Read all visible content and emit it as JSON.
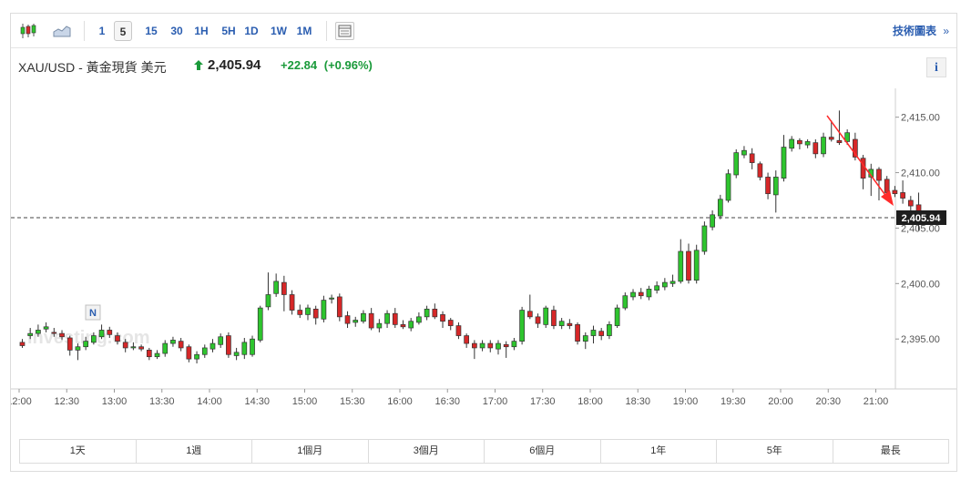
{
  "toolbar": {
    "icons": [
      "candlestick-chart-icon",
      "area-chart-icon",
      "table-view-icon"
    ],
    "intervals": [
      "1",
      "5",
      "15",
      "30",
      "1H",
      "5H",
      "1D",
      "1W",
      "1M"
    ],
    "active_interval": "5",
    "tech_chart_label": "技術圖表",
    "tech_chart_arrow": "»"
  },
  "header": {
    "symbol": "XAU/USD - 黃金現貨 美元",
    "price": "2,405.94",
    "change": "+22.84",
    "change_pct": "(+0.96%)",
    "info_label": "i",
    "trend_icon": "up-arrow-icon",
    "badge_label": "N"
  },
  "colors": {
    "up": "#2ec52e",
    "down": "#d62728",
    "positive_text": "#1a9a3a",
    "link": "#2a5db0",
    "annotation": "#ff2a2a"
  },
  "ranges": [
    "1天",
    "1週",
    "1個月",
    "3個月",
    "6個月",
    "1年",
    "5年",
    "最長"
  ],
  "chart_data": {
    "type": "candlestick",
    "x_tick_labels": [
      "12:00",
      "12:30",
      "13:00",
      "13:30",
      "14:00",
      "14:30",
      "15:00",
      "15:30",
      "16:00",
      "16:30",
      "17:00",
      "17:30",
      "18:00",
      "18:30",
      "19:00",
      "19:30",
      "20:00",
      "20:30",
      "21:00"
    ],
    "y_tick_labels": [
      "2,395.00",
      "2,400.00",
      "2,405.00",
      "2,410.00",
      "2,415.00"
    ],
    "y_ticks": [
      2395,
      2400,
      2405,
      2410,
      2415
    ],
    "ylim": [
      2390.5,
      2417.6
    ],
    "x_start": "12:00",
    "interval_minutes": 5,
    "current_price": 2405.94,
    "current_price_label": "2,405.94",
    "grid": false,
    "candles": [
      [
        2394.7,
        2394.4,
        2395.0,
        2394.2
      ],
      [
        2395.3,
        2395.5,
        2396.0,
        2395.0
      ],
      [
        2395.5,
        2395.8,
        2396.3,
        2395.2
      ],
      [
        2395.9,
        2396.1,
        2396.5,
        2395.6
      ],
      [
        2395.6,
        2395.5,
        2396.0,
        2395.2
      ],
      [
        2395.5,
        2395.2,
        2395.8,
        2394.9
      ],
      [
        2395.1,
        2394.0,
        2395.3,
        2393.5
      ],
      [
        2394.0,
        2394.3,
        2394.6,
        2393.1
      ],
      [
        2394.3,
        2394.8,
        2395.2,
        2394.0
      ],
      [
        2394.7,
        2395.3,
        2395.6,
        2394.5
      ],
      [
        2395.2,
        2395.8,
        2396.3,
        2395.0
      ],
      [
        2395.8,
        2395.4,
        2396.1,
        2395.1
      ],
      [
        2395.3,
        2394.8,
        2395.6,
        2394.5
      ],
      [
        2394.7,
        2394.2,
        2395.0,
        2393.8
      ],
      [
        2394.2,
        2394.3,
        2394.7,
        2394.0
      ],
      [
        2394.3,
        2394.1,
        2394.5,
        2393.9
      ],
      [
        2394.0,
        2393.4,
        2394.2,
        2393.1
      ],
      [
        2393.4,
        2393.7,
        2394.0,
        2393.2
      ],
      [
        2393.7,
        2394.6,
        2394.9,
        2393.4
      ],
      [
        2394.6,
        2394.9,
        2395.2,
        2394.3
      ],
      [
        2394.8,
        2394.2,
        2395.1,
        2393.9
      ],
      [
        2394.3,
        2393.2,
        2394.5,
        2392.9
      ],
      [
        2393.2,
        2393.6,
        2393.9,
        2392.8
      ],
      [
        2393.6,
        2394.2,
        2394.5,
        2393.3
      ],
      [
        2394.1,
        2394.6,
        2395.0,
        2393.8
      ],
      [
        2394.5,
        2395.2,
        2395.5,
        2394.2
      ],
      [
        2395.3,
        2393.6,
        2395.6,
        2393.3
      ],
      [
        2393.5,
        2393.8,
        2394.2,
        2393.1
      ],
      [
        2393.6,
        2394.7,
        2395.1,
        2393.2
      ],
      [
        2393.6,
        2395.0,
        2395.3,
        2393.4
      ],
      [
        2394.9,
        2397.8,
        2398.0,
        2394.7
      ],
      [
        2397.9,
        2399.0,
        2401.0,
        2397.6
      ],
      [
        2399.1,
        2400.2,
        2400.9,
        2398.8
      ],
      [
        2400.1,
        2399.0,
        2400.7,
        2397.5
      ],
      [
        2399.0,
        2397.6,
        2399.4,
        2397.2
      ],
      [
        2397.6,
        2397.2,
        2398.1,
        2396.9
      ],
      [
        2397.2,
        2397.8,
        2398.1,
        2396.7
      ],
      [
        2397.7,
        2396.9,
        2398.0,
        2396.3
      ],
      [
        2396.8,
        2398.5,
        2398.9,
        2396.5
      ],
      [
        2398.6,
        2398.7,
        2399.0,
        2398.2
      ],
      [
        2398.8,
        2397.0,
        2399.1,
        2396.6
      ],
      [
        2397.1,
        2396.4,
        2397.5,
        2396.0
      ],
      [
        2396.5,
        2396.7,
        2397.0,
        2396.1
      ],
      [
        2396.6,
        2397.3,
        2397.6,
        2396.4
      ],
      [
        2397.3,
        2396.0,
        2397.8,
        2395.8
      ],
      [
        2396.0,
        2396.4,
        2396.8,
        2395.6
      ],
      [
        2396.4,
        2397.3,
        2397.6,
        2396.0
      ],
      [
        2397.3,
        2396.3,
        2397.8,
        2396.0
      ],
      [
        2396.3,
        2396.1,
        2396.7,
        2395.9
      ],
      [
        2396.0,
        2396.6,
        2396.9,
        2395.7
      ],
      [
        2396.5,
        2397.0,
        2397.4,
        2396.3
      ],
      [
        2397.0,
        2397.7,
        2398.0,
        2396.7
      ],
      [
        2397.7,
        2397.0,
        2398.2,
        2396.8
      ],
      [
        2397.2,
        2396.6,
        2397.5,
        2396.0
      ],
      [
        2396.7,
        2396.2,
        2396.9,
        2395.8
      ],
      [
        2396.2,
        2395.3,
        2396.5,
        2395.0
      ],
      [
        2395.3,
        2394.6,
        2395.5,
        2394.2
      ],
      [
        2394.6,
        2394.2,
        2394.9,
        2393.2
      ],
      [
        2394.2,
        2394.6,
        2394.9,
        2393.9
      ],
      [
        2394.6,
        2394.2,
        2394.9,
        2393.8
      ],
      [
        2394.1,
        2394.6,
        2394.9,
        2393.6
      ],
      [
        2394.5,
        2394.3,
        2394.8,
        2393.3
      ],
      [
        2394.3,
        2394.8,
        2395.1,
        2394.0
      ],
      [
        2394.8,
        2397.6,
        2397.9,
        2394.5
      ],
      [
        2397.5,
        2397.0,
        2399.0,
        2396.8
      ],
      [
        2397.0,
        2396.4,
        2397.3,
        2396.0
      ],
      [
        2396.3,
        2397.8,
        2398.0,
        2396.0
      ],
      [
        2397.6,
        2396.2,
        2398.0,
        2395.9
      ],
      [
        2396.2,
        2396.6,
        2396.9,
        2395.9
      ],
      [
        2396.4,
        2396.2,
        2396.8,
        2395.9
      ],
      [
        2396.3,
        2394.8,
        2396.5,
        2394.5
      ],
      [
        2394.8,
        2395.3,
        2395.6,
        2394.1
      ],
      [
        2395.3,
        2395.8,
        2396.2,
        2394.6
      ],
      [
        2395.7,
        2395.3,
        2396.0,
        2394.9
      ],
      [
        2395.3,
        2396.3,
        2396.6,
        2395.0
      ],
      [
        2396.2,
        2397.8,
        2398.1,
        2396.0
      ],
      [
        2397.8,
        2398.9,
        2399.2,
        2397.6
      ],
      [
        2398.8,
        2399.2,
        2399.5,
        2398.5
      ],
      [
        2399.2,
        2398.9,
        2399.6,
        2398.6
      ],
      [
        2398.8,
        2399.5,
        2399.8,
        2398.5
      ],
      [
        2399.4,
        2399.8,
        2400.2,
        2399.1
      ],
      [
        2399.7,
        2400.1,
        2400.5,
        2399.4
      ],
      [
        2400.0,
        2400.2,
        2400.8,
        2399.7
      ],
      [
        2400.2,
        2402.9,
        2404.0,
        2400.0
      ],
      [
        2402.9,
        2400.3,
        2403.6,
        2400.0
      ],
      [
        2400.3,
        2403.0,
        2403.5,
        2400.0
      ],
      [
        2402.9,
        2405.2,
        2405.6,
        2402.6
      ],
      [
        2405.1,
        2406.2,
        2406.6,
        2404.8
      ],
      [
        2406.1,
        2407.6,
        2408.0,
        2405.8
      ],
      [
        2407.5,
        2409.9,
        2410.3,
        2407.3
      ],
      [
        2409.8,
        2411.8,
        2412.1,
        2409.5
      ],
      [
        2411.6,
        2412.0,
        2412.4,
        2411.3
      ],
      [
        2411.7,
        2410.9,
        2412.2,
        2410.3
      ],
      [
        2410.8,
        2409.6,
        2411.0,
        2409.3
      ],
      [
        2409.6,
        2408.1,
        2410.0,
        2407.6
      ],
      [
        2408.0,
        2409.6,
        2410.2,
        2406.4
      ],
      [
        2409.5,
        2412.3,
        2413.4,
        2409.2
      ],
      [
        2412.2,
        2413.0,
        2413.3,
        2411.9
      ],
      [
        2412.9,
        2412.6,
        2413.1,
        2412.1
      ],
      [
        2412.5,
        2412.8,
        2413.0,
        2412.2
      ],
      [
        2412.7,
        2411.7,
        2413.0,
        2411.3
      ],
      [
        2411.7,
        2413.2,
        2413.6,
        2411.4
      ],
      [
        2413.2,
        2413.0,
        2414.7,
        2412.8
      ],
      [
        2412.9,
        2412.7,
        2415.6,
        2412.5
      ],
      [
        2412.8,
        2413.6,
        2413.9,
        2412.5
      ],
      [
        2413.0,
        2411.4,
        2413.6,
        2411.1
      ],
      [
        2411.3,
        2409.5,
        2411.6,
        2408.5
      ],
      [
        2409.6,
        2410.3,
        2410.8,
        2407.9
      ],
      [
        2410.3,
        2409.3,
        2410.5,
        2407.5
      ],
      [
        2409.4,
        2408.2,
        2409.7,
        2407.9
      ],
      [
        2408.4,
        2408.1,
        2408.8,
        2407.8
      ],
      [
        2408.2,
        2407.7,
        2409.3,
        2407.2
      ],
      [
        2407.5,
        2407.0,
        2407.9,
        2405.7
      ],
      [
        2407.1,
        2405.8,
        2408.2,
        2404.8
      ]
    ]
  }
}
